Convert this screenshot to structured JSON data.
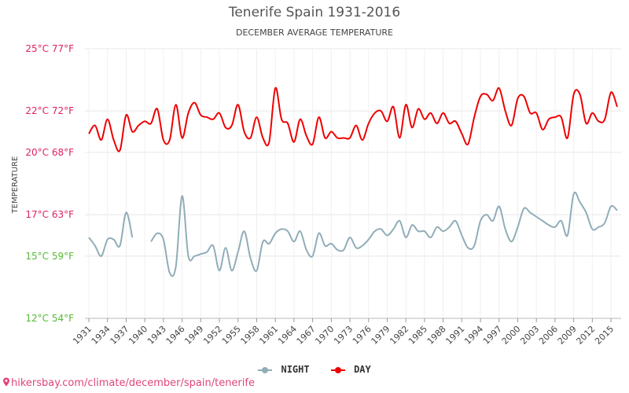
{
  "chart_data": {
    "type": "line",
    "title": "Tenerife Spain 1931-2016",
    "subtitle": "DECEMBER AVERAGE TEMPERATURE",
    "ylabel": "TEMPERATURE",
    "xlabel": "",
    "ylim": [
      12,
      25
    ],
    "y_ticks": [
      {
        "value": 12,
        "label": "12°C 54°F",
        "color": "#55bb33"
      },
      {
        "value": 15,
        "label": "15°C 59°F",
        "color": "#55bb33"
      },
      {
        "value": 17,
        "label": "17°C 63°F",
        "color": "#dd2266"
      },
      {
        "value": 20,
        "label": "20°C 68°F",
        "color": "#dd2266"
      },
      {
        "value": 22,
        "label": "22°C 72°F",
        "color": "#dd2266"
      },
      {
        "value": 25,
        "label": "25°C 77°F",
        "color": "#dd2266"
      }
    ],
    "x_ticks": [
      1931,
      1934,
      1937,
      1940,
      1943,
      1946,
      1949,
      1952,
      1955,
      1958,
      1961,
      1964,
      1967,
      1970,
      1973,
      1976,
      1979,
      1982,
      1985,
      1988,
      1991,
      1994,
      1997,
      2000,
      2003,
      2006,
      2009,
      2012,
      2015
    ],
    "x": [
      1931,
      1932,
      1933,
      1934,
      1935,
      1936,
      1937,
      1938,
      1939,
      1940,
      1941,
      1942,
      1943,
      1944,
      1945,
      1946,
      1947,
      1948,
      1949,
      1950,
      1951,
      1952,
      1953,
      1954,
      1955,
      1956,
      1957,
      1958,
      1959,
      1960,
      1961,
      1962,
      1963,
      1964,
      1965,
      1966,
      1967,
      1968,
      1969,
      1970,
      1971,
      1972,
      1973,
      1974,
      1975,
      1976,
      1977,
      1978,
      1979,
      1980,
      1981,
      1982,
      1983,
      1984,
      1985,
      1986,
      1987,
      1988,
      1989,
      1990,
      1991,
      1992,
      1993,
      1994,
      1995,
      1996,
      1997,
      1998,
      1999,
      2000,
      2001,
      2002,
      2003,
      2004,
      2005,
      2006,
      2007,
      2008,
      2009,
      2010,
      2011,
      2012,
      2013,
      2014,
      2015,
      2016
    ],
    "series": [
      {
        "name": "DAY",
        "color": "#ee0000",
        "values": [
          20.9,
          21.3,
          20.6,
          21.6,
          20.6,
          20.1,
          21.8,
          21.0,
          21.3,
          21.5,
          21.4,
          22.1,
          20.6,
          20.6,
          22.3,
          20.7,
          21.9,
          22.4,
          21.8,
          21.7,
          21.6,
          21.9,
          21.2,
          21.3,
          22.3,
          21.0,
          20.7,
          21.7,
          20.7,
          20.5,
          23.1,
          21.6,
          21.4,
          20.5,
          21.6,
          20.8,
          20.4,
          21.7,
          20.7,
          21.0,
          20.7,
          20.7,
          20.7,
          21.3,
          20.6,
          21.4,
          21.9,
          22.0,
          21.5,
          22.2,
          20.7,
          22.3,
          21.2,
          22.1,
          21.6,
          21.9,
          21.4,
          21.9,
          21.4,
          21.5,
          20.9,
          20.4,
          21.7,
          22.7,
          22.8,
          22.5,
          23.1,
          22.0,
          21.3,
          22.6,
          22.7,
          21.9,
          21.9,
          21.1,
          21.6,
          21.7,
          21.7,
          20.7,
          22.8,
          22.8,
          21.4,
          21.9,
          21.5,
          21.6,
          22.9,
          22.2
        ]
      },
      {
        "name": "NIGHT",
        "color": "#90adb8",
        "values": [
          15.9,
          15.5,
          15.0,
          15.8,
          15.8,
          15.5,
          17.1,
          15.9,
          null,
          null,
          15.7,
          16.1,
          15.8,
          14.2,
          14.5,
          17.9,
          15.0,
          15.0,
          15.1,
          15.2,
          15.5,
          14.3,
          15.4,
          14.3,
          15.2,
          16.2,
          14.9,
          14.3,
          15.7,
          15.6,
          16.1,
          16.3,
          16.2,
          15.7,
          16.2,
          15.3,
          15.0,
          16.1,
          15.5,
          15.6,
          15.3,
          15.3,
          15.9,
          15.4,
          15.5,
          15.8,
          16.2,
          16.3,
          16.0,
          16.3,
          16.7,
          15.9,
          16.5,
          16.2,
          16.2,
          15.9,
          16.4,
          16.2,
          16.4,
          16.7,
          16.0,
          15.4,
          15.5,
          16.7,
          17.0,
          16.7,
          17.4,
          16.3,
          15.7,
          16.4,
          17.3,
          17.1,
          16.9,
          16.7,
          16.5,
          16.4,
          16.7,
          16.0,
          18.0,
          17.6,
          17.1,
          16.3,
          16.4,
          16.6,
          17.4,
          17.2
        ]
      }
    ],
    "legend": [
      {
        "name": "NIGHT",
        "color": "#90adb8"
      },
      {
        "name": "DAY",
        "color": "#ee0000"
      }
    ],
    "legend_position": "bottom-center",
    "grid": true
  },
  "footer": {
    "text": "hikersbay.com/climate/december/spain/tenerife",
    "icon": "map-pin-icon"
  }
}
